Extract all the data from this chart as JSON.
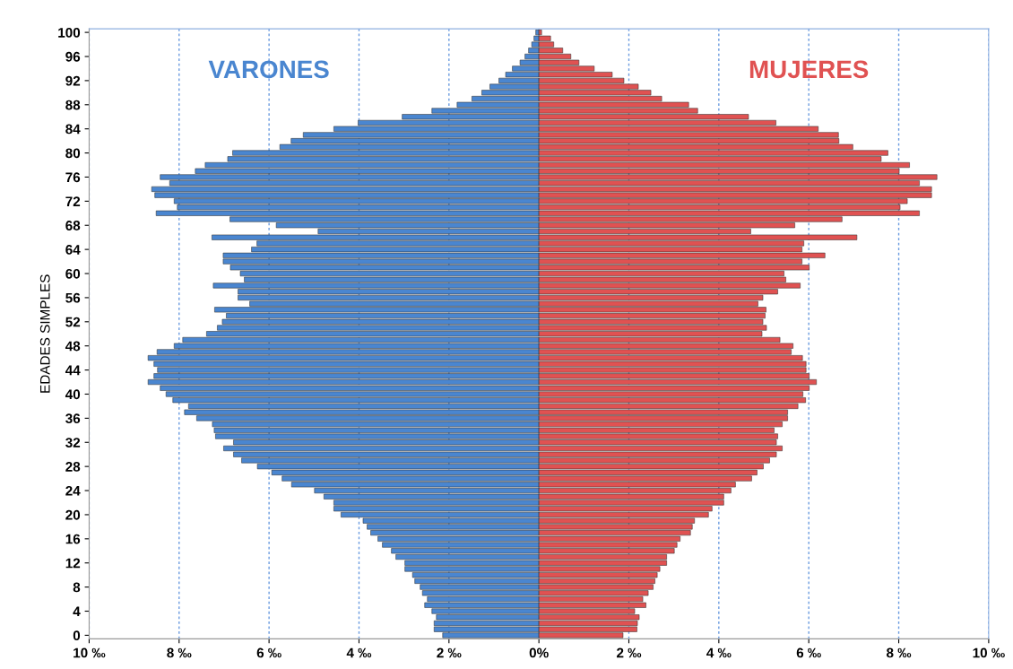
{
  "chart_data": {
    "type": "bar",
    "orientation": "horizontal",
    "ylabel": "EDADES SIMPLES",
    "categories": [
      "100",
      null,
      null,
      null,
      "96",
      null,
      null,
      null,
      "92",
      null,
      null,
      null,
      "88",
      null,
      null,
      null,
      "84",
      null,
      null,
      null,
      "80",
      null,
      null,
      null,
      "76",
      null,
      null,
      null,
      "72",
      null,
      null,
      null,
      "68",
      null,
      null,
      null,
      "64",
      null,
      null,
      null,
      "60",
      null,
      null,
      null,
      "56",
      null,
      null,
      null,
      "52",
      null,
      null,
      null,
      "48",
      null,
      null,
      null,
      "44",
      null,
      null,
      null,
      "40",
      null,
      null,
      null,
      "36",
      null,
      null,
      null,
      "32",
      null,
      null,
      null,
      "28",
      null,
      null,
      null,
      "24",
      null,
      null,
      null,
      "20",
      null,
      null,
      null,
      "16",
      null,
      null,
      null,
      "12",
      null,
      null,
      null,
      "8",
      null,
      null,
      null,
      "4",
      null,
      null,
      null,
      "0"
    ],
    "series": [
      {
        "name": "VARONES",
        "color": "#4a86d0",
        "values": [
          -0.07,
          -0.11,
          -0.16,
          -0.23,
          -0.31,
          -0.42,
          -0.59,
          -0.74,
          -0.89,
          -1.09,
          -1.27,
          -1.49,
          -1.82,
          -2.38,
          -3.04,
          -4.02,
          -4.56,
          -5.24,
          -5.51,
          -5.76,
          -6.81,
          -6.92,
          -7.42,
          -7.64,
          -8.42,
          -8.21,
          -8.61,
          -8.54,
          -8.11,
          -8.04,
          -8.51,
          -6.87,
          -5.84,
          -4.91,
          -7.27,
          -6.27,
          -6.39,
          -7.02,
          -7.02,
          -6.86,
          -6.64,
          -6.55,
          -7.24,
          -6.69,
          -6.69,
          -6.43,
          -7.21,
          -6.95,
          -7.04,
          -7.15,
          -7.39,
          -7.92,
          -8.11,
          -8.49,
          -8.69,
          -8.56,
          -8.48,
          -8.56,
          -8.69,
          -8.42,
          -8.29,
          -8.14,
          -7.79,
          -7.88,
          -7.61,
          -7.26,
          -7.22,
          -7.19,
          -6.79,
          -7.01,
          -6.79,
          -6.61,
          -6.26,
          -5.94,
          -5.71,
          -5.5,
          -4.99,
          -4.78,
          -4.56,
          -4.56,
          -4.4,
          -3.91,
          -3.82,
          -3.74,
          -3.58,
          -3.48,
          -3.28,
          -3.18,
          -2.98,
          -2.98,
          -2.81,
          -2.76,
          -2.64,
          -2.59,
          -2.48,
          -2.54,
          -2.38,
          -2.28,
          -2.33,
          -2.33,
          -2.14
        ]
      },
      {
        "name": "MUJERES",
        "color": "#e05252",
        "values": [
          0.06,
          0.26,
          0.33,
          0.53,
          0.71,
          0.89,
          1.23,
          1.63,
          1.89,
          2.21,
          2.49,
          2.73,
          3.33,
          3.53,
          4.66,
          5.27,
          6.21,
          6.66,
          6.67,
          6.98,
          7.76,
          7.61,
          8.24,
          8.01,
          8.85,
          8.46,
          8.73,
          8.73,
          8.19,
          8.03,
          8.46,
          6.74,
          5.69,
          4.71,
          7.07,
          5.89,
          5.85,
          6.36,
          5.85,
          6.01,
          5.45,
          5.49,
          5.81,
          5.31,
          4.98,
          4.87,
          5.05,
          5.03,
          4.98,
          5.06,
          4.96,
          5.36,
          5.65,
          5.61,
          5.86,
          5.94,
          5.94,
          6.01,
          6.17,
          6.01,
          5.87,
          5.93,
          5.76,
          5.53,
          5.53,
          5.41,
          5.23,
          5.31,
          5.28,
          5.41,
          5.28,
          5.13,
          4.99,
          4.85,
          4.73,
          4.37,
          4.27,
          4.11,
          4.11,
          3.85,
          3.77,
          3.46,
          3.41,
          3.37,
          3.14,
          3.07,
          3.01,
          2.84,
          2.84,
          2.69,
          2.63,
          2.58,
          2.54,
          2.43,
          2.31,
          2.38,
          2.13,
          2.23,
          2.19,
          2.18,
          1.87
        ]
      }
    ],
    "xlim": [
      -10,
      10
    ],
    "xticks": [
      {
        "value": -10,
        "label": "10 ‰"
      },
      {
        "value": -8,
        "label": "8 ‰"
      },
      {
        "value": -6,
        "label": "6 ‰"
      },
      {
        "value": -4,
        "label": "4 ‰"
      },
      {
        "value": -2,
        "label": "2 ‰"
      },
      {
        "value": 0,
        "label": "0%"
      },
      {
        "value": 2,
        "label": "2 ‰"
      },
      {
        "value": 4,
        "label": "4 ‰"
      },
      {
        "value": 6,
        "label": "6 ‰"
      },
      {
        "value": 8,
        "label": "8 ‰"
      },
      {
        "value": 10,
        "label": "10 ‰"
      }
    ],
    "stacked": true,
    "grid": "x",
    "legend": false
  }
}
